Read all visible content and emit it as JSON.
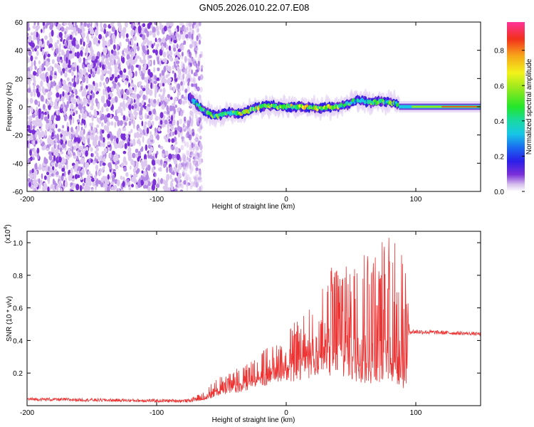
{
  "title": "GN05.2026.010.22.07.E08",
  "chart_data": [
    {
      "type": "heatmap",
      "xlabel": "Height of straight line (km)",
      "ylabel": "Frequency (Hz)",
      "xlim": [
        -200,
        150
      ],
      "ylim": [
        -60,
        60
      ],
      "xticks": [
        -200,
        -100,
        0,
        100
      ],
      "yticks": [
        60,
        40,
        20,
        0,
        -20,
        -40,
        -60
      ],
      "colorbar": {
        "label": "Normalized spectral amplitude",
        "range": [
          0,
          0.96
        ],
        "ticks": [
          0.0,
          0.2,
          0.4,
          0.6,
          0.8
        ]
      },
      "regions": [
        {
          "name": "broadband noise",
          "x": [
            -200,
            -65
          ],
          "y": [
            -60,
            60
          ],
          "amplitude": 0.15
        },
        {
          "name": "signal",
          "x": [
            -75,
            87
          ],
          "y": [
            -8,
            8
          ],
          "amplitude": 0.5
        },
        {
          "name": "carrier",
          "x": [
            87,
            150
          ],
          "y": [
            0,
            0
          ],
          "amplitude": 0.9
        }
      ],
      "centerline": [
        {
          "x": -75,
          "f": 7
        },
        {
          "x": -65,
          "f": -2
        },
        {
          "x": -55,
          "f": -7
        },
        {
          "x": -45,
          "f": -4
        },
        {
          "x": -35,
          "f": -5
        },
        {
          "x": -25,
          "f": -1
        },
        {
          "x": -15,
          "f": 1
        },
        {
          "x": -5,
          "f": 0
        },
        {
          "x": 5,
          "f": 0
        },
        {
          "x": 15,
          "f": 0
        },
        {
          "x": 25,
          "f": -1
        },
        {
          "x": 35,
          "f": 0
        },
        {
          "x": 45,
          "f": 1
        },
        {
          "x": 55,
          "f": 5
        },
        {
          "x": 65,
          "f": 3
        },
        {
          "x": 75,
          "f": 4
        },
        {
          "x": 85,
          "f": 2
        },
        {
          "x": 100,
          "f": 1
        },
        {
          "x": 150,
          "f": 0
        }
      ]
    },
    {
      "type": "line",
      "xlabel": "Height of straight line (km)",
      "ylabel": "SNR (10 * v/v)",
      "yscale_label": "(x10",
      "yscale_exponent": "4",
      "xlim": [
        -200,
        150
      ],
      "ylim": [
        0,
        1.07
      ],
      "xticks": [
        -200,
        -100,
        0,
        100
      ],
      "yticks": [
        0.2,
        0.4,
        0.6,
        0.8,
        1.0
      ],
      "series": [
        {
          "color": "#ee3333",
          "envelope": [
            {
              "x": -200,
              "base": 0.03,
              "peak": 0.05
            },
            {
              "x": -100,
              "base": 0.02,
              "peak": 0.04
            },
            {
              "x": -75,
              "base": 0.02,
              "peak": 0.04
            },
            {
              "x": -65,
              "base": 0.03,
              "peak": 0.08
            },
            {
              "x": -55,
              "base": 0.05,
              "peak": 0.16
            },
            {
              "x": -45,
              "base": 0.07,
              "peak": 0.2
            },
            {
              "x": -35,
              "base": 0.08,
              "peak": 0.26
            },
            {
              "x": -25,
              "base": 0.1,
              "peak": 0.28
            },
            {
              "x": -15,
              "base": 0.12,
              "peak": 0.36
            },
            {
              "x": -5,
              "base": 0.15,
              "peak": 0.38
            },
            {
              "x": 5,
              "base": 0.14,
              "peak": 0.5
            },
            {
              "x": 15,
              "base": 0.16,
              "peak": 0.58
            },
            {
              "x": 25,
              "base": 0.18,
              "peak": 0.66
            },
            {
              "x": 35,
              "base": 0.17,
              "peak": 0.86
            },
            {
              "x": 45,
              "base": 0.15,
              "peak": 0.92
            },
            {
              "x": 55,
              "base": 0.14,
              "peak": 0.98
            },
            {
              "x": 65,
              "base": 0.12,
              "peak": 1.02
            },
            {
              "x": 75,
              "base": 0.1,
              "peak": 1.02
            },
            {
              "x": 85,
              "base": 0.08,
              "peak": 1.06
            },
            {
              "x": 93,
              "base": 0.08,
              "peak": 0.9
            },
            {
              "x": 95,
              "base": 0.44,
              "peak": 0.47
            },
            {
              "x": 150,
              "base": 0.43,
              "peak": 0.45
            }
          ]
        }
      ]
    }
  ]
}
